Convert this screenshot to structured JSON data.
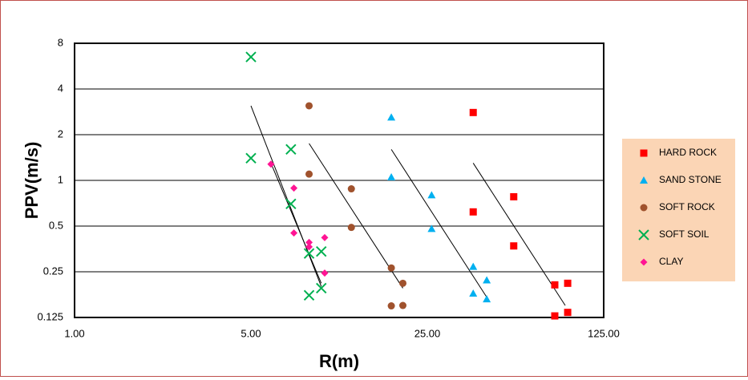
{
  "chart_data": {
    "type": "scatter",
    "xlabel": "R(m)",
    "ylabel": "PPV(m/s)",
    "x_scale": "log",
    "y_scale": "log",
    "xlim": [
      1,
      125
    ],
    "ylim": [
      0.125,
      8
    ],
    "x_ticks": [
      1,
      5,
      25,
      125
    ],
    "x_tick_labels": [
      "1.00",
      "5.00",
      "25.00",
      "125.00"
    ],
    "y_ticks": [
      0.125,
      0.25,
      0.5,
      1,
      2,
      4,
      8
    ],
    "y_tick_labels": [
      "0.125",
      "0.25",
      "0.5",
      "1",
      "2",
      "4",
      "8"
    ],
    "grid": "horizontal",
    "legend_position": "right",
    "legend_background": "#fbd5b5",
    "series": [
      {
        "name": "HARD ROCK",
        "marker": "square",
        "color": "#ff0000",
        "points": [
          [
            38,
            2.8
          ],
          [
            55,
            0.78
          ],
          [
            38,
            0.62
          ],
          [
            55,
            0.37
          ],
          [
            80,
            0.205
          ],
          [
            90,
            0.21
          ],
          [
            80,
            0.128
          ],
          [
            90,
            0.135
          ]
        ],
        "trend": [
          [
            38,
            1.3
          ],
          [
            88,
            0.15
          ]
        ]
      },
      {
        "name": "SAND STONE",
        "marker": "triangle",
        "color": "#00b0f0",
        "points": [
          [
            18,
            2.6
          ],
          [
            18,
            1.05
          ],
          [
            26,
            0.8
          ],
          [
            26,
            0.48
          ],
          [
            38,
            0.27
          ],
          [
            43,
            0.22
          ],
          [
            38,
            0.18
          ],
          [
            43,
            0.165
          ]
        ],
        "trend": [
          [
            18,
            1.6
          ],
          [
            43,
            0.17
          ]
        ]
      },
      {
        "name": "SOFT ROCK",
        "marker": "circle",
        "color": "#c0504d",
        "point_color": "#a0522d",
        "points": [
          [
            8.5,
            3.1
          ],
          [
            8.5,
            1.1
          ],
          [
            12.5,
            0.88
          ],
          [
            12.5,
            0.49
          ],
          [
            18,
            0.265
          ],
          [
            20,
            0.21
          ],
          [
            18,
            0.149
          ],
          [
            20,
            0.15
          ]
        ],
        "trend": [
          [
            8.5,
            1.75
          ],
          [
            20,
            0.195
          ]
        ]
      },
      {
        "name": "SOFT SOIL",
        "marker": "x",
        "color": "#00b050",
        "points": [
          [
            5,
            6.5
          ],
          [
            5,
            1.4
          ],
          [
            7.2,
            1.6
          ],
          [
            7.2,
            0.7
          ],
          [
            8.5,
            0.33
          ],
          [
            9.5,
            0.34
          ],
          [
            8.5,
            0.175
          ],
          [
            9.5,
            0.195
          ]
        ],
        "trend": [
          [
            5,
            3.1
          ],
          [
            9.5,
            0.2
          ]
        ]
      },
      {
        "name": "CLAY",
        "marker": "diamond",
        "color": "#ff1493",
        "points": [
          [
            6,
            1.28
          ],
          [
            7.4,
            0.89
          ],
          [
            7.4,
            0.45
          ],
          [
            8.5,
            0.39
          ],
          [
            9.8,
            0.42
          ],
          [
            8.5,
            0.365
          ],
          [
            9.8,
            0.245
          ]
        ],
        "trend": [
          [
            6,
            1.3
          ],
          [
            9.5,
            0.21
          ]
        ]
      }
    ]
  }
}
